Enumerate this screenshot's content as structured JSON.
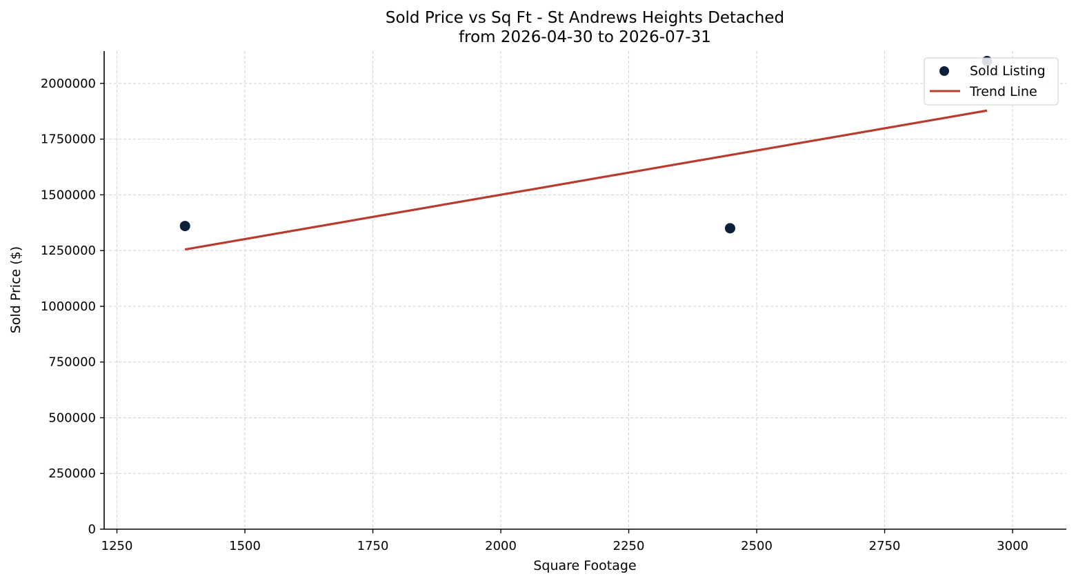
{
  "chart_data": {
    "type": "scatter",
    "title": "Sold Price vs Sq Ft - St Andrews Heights Detached",
    "subtitle": "from 2026-04-30 to 2026-07-31",
    "xlabel": "Square Footage",
    "ylabel": "Sold Price ($)",
    "xlim": [
      1225,
      3105
    ],
    "ylim": [
      0,
      2145000
    ],
    "x_ticks": [
      1250,
      1500,
      1750,
      2000,
      2250,
      2500,
      2750,
      3000
    ],
    "y_ticks": [
      0,
      250000,
      500000,
      750000,
      1000000,
      1250000,
      1500000,
      1750000,
      2000000
    ],
    "grid": true,
    "legend_position": "top-right",
    "series": [
      {
        "name": "Sold Listing",
        "kind": "scatter",
        "color": "#0b1f3a",
        "x": [
          1383,
          2448,
          2950
        ],
        "y": [
          1360000,
          1350000,
          2100000
        ]
      },
      {
        "name": "Trend Line",
        "kind": "line",
        "color": "#b83c2e",
        "x": [
          1383,
          2950
        ],
        "y": [
          1255000,
          1878000
        ]
      }
    ]
  }
}
